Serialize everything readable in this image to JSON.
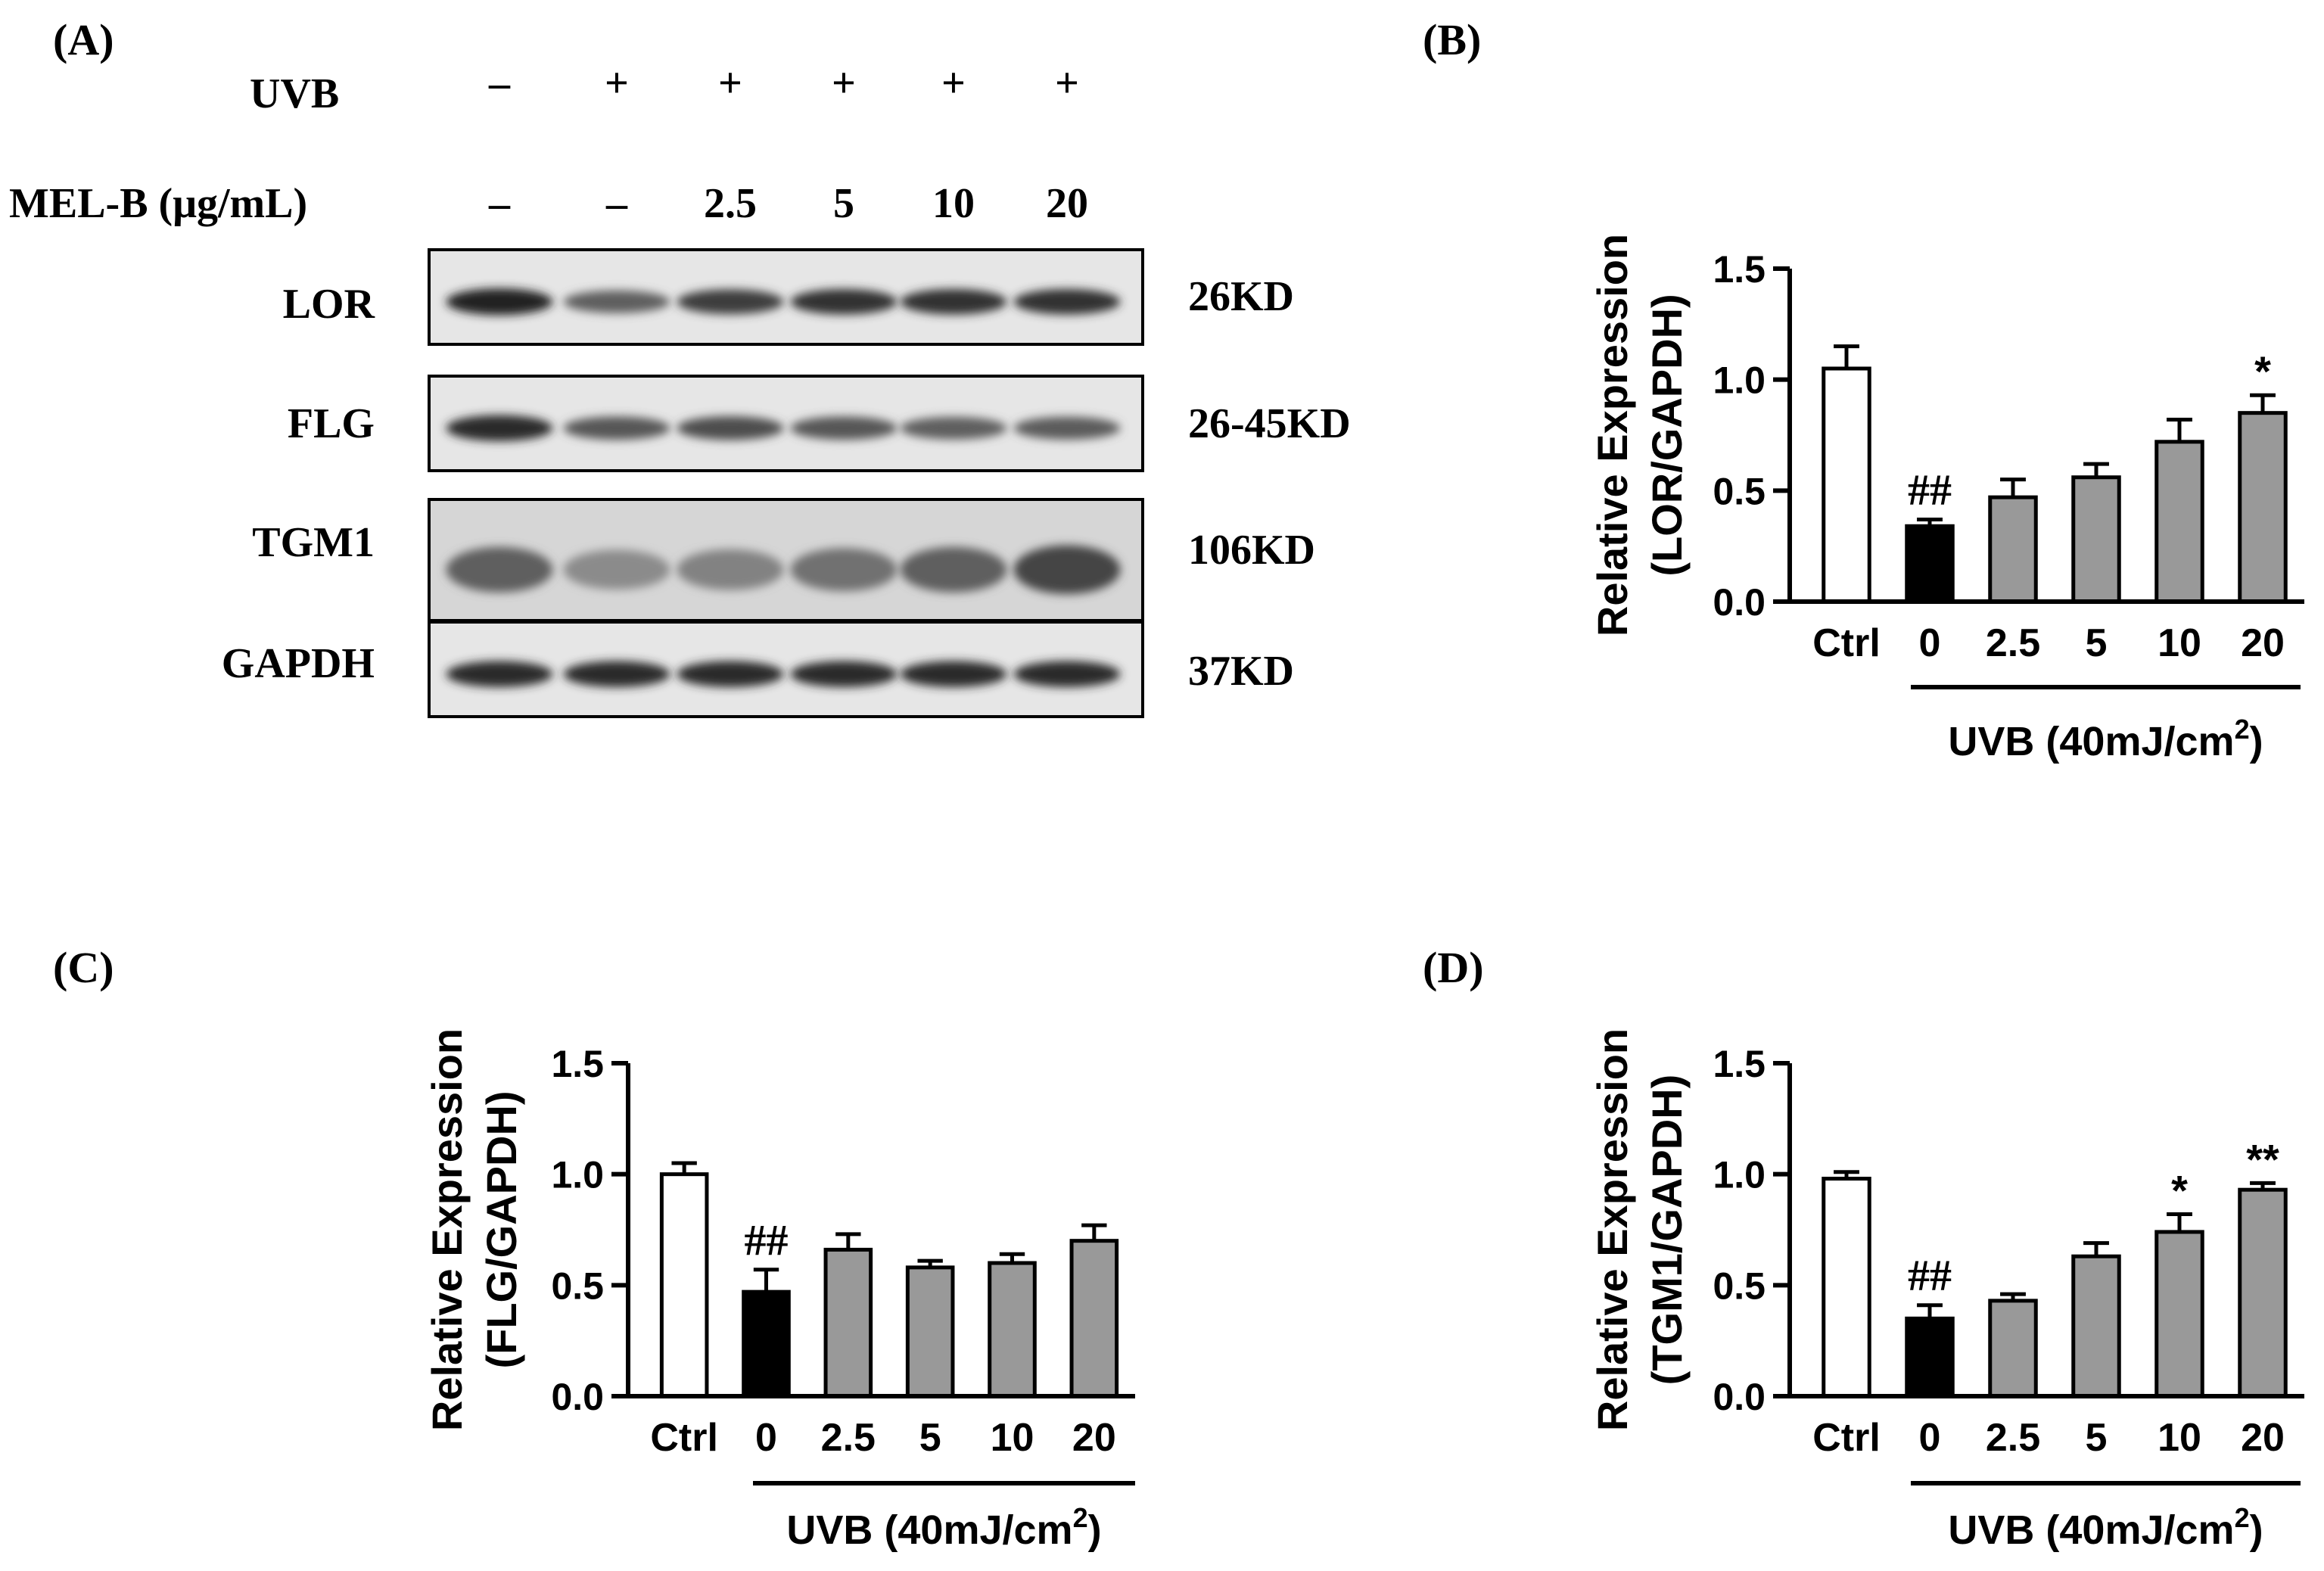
{
  "blot": {
    "panel_label": "(A)",
    "uvb_label": "UVB",
    "uvb_values": [
      "–",
      "+",
      "+",
      "+",
      "+",
      "+"
    ],
    "melb_label": "MEL-B (μg/mL)",
    "melb_values": [
      "–",
      "–",
      "2.5",
      "5",
      "10",
      "20"
    ],
    "rows": [
      {
        "label": "LOR",
        "size": "26KD",
        "intensity": [
          0.95,
          0.6,
          0.8,
          0.85,
          0.85,
          0.85
        ]
      },
      {
        "label": "FLG",
        "size": "26-45KD",
        "intensity": [
          0.9,
          0.65,
          0.7,
          0.65,
          0.6,
          0.62
        ]
      },
      {
        "label": "TGM1",
        "size": "106KD",
        "intensity": [
          0.6,
          0.35,
          0.4,
          0.5,
          0.6,
          0.75
        ]
      },
      {
        "label": "GAPDH",
        "size": "37KD",
        "intensity": [
          0.9,
          0.9,
          0.9,
          0.9,
          0.9,
          0.9
        ]
      }
    ]
  },
  "chart_data": [
    {
      "panel": "(B)",
      "type": "bar",
      "categories": [
        "Ctrl",
        "0",
        "2.5",
        "5",
        "10",
        "20"
      ],
      "values": [
        1.05,
        0.34,
        0.47,
        0.56,
        0.72,
        0.85
      ],
      "errors": [
        0.1,
        0.03,
        0.08,
        0.06,
        0.1,
        0.08
      ],
      "bar_colors": [
        "#ffffff",
        "#000000",
        "#999999",
        "#999999",
        "#999999",
        "#999999"
      ],
      "annotations": [
        "",
        "##",
        "",
        "",
        "",
        "*"
      ],
      "ylabel_line1": "Relative Expression",
      "ylabel_line2": "(LOR/GAPDH)",
      "ylim": [
        0,
        1.5
      ],
      "yticks": [
        "0.0",
        "0.5",
        "1.0",
        "1.5"
      ],
      "group_label": "UVB (40mJ/cm",
      "group_label_sup": "2",
      "group_label_end": ")"
    },
    {
      "panel": "(C)",
      "type": "bar",
      "categories": [
        "Ctrl",
        "0",
        "2.5",
        "5",
        "10",
        "20"
      ],
      "values": [
        1.0,
        0.47,
        0.66,
        0.58,
        0.6,
        0.7
      ],
      "errors": [
        0.05,
        0.1,
        0.07,
        0.03,
        0.04,
        0.07
      ],
      "bar_colors": [
        "#ffffff",
        "#000000",
        "#999999",
        "#999999",
        "#999999",
        "#999999"
      ],
      "annotations": [
        "",
        "##",
        "",
        "",
        "",
        ""
      ],
      "ylabel_line1": "Relative Expression",
      "ylabel_line2": "(FLG/GAPDH)",
      "ylim": [
        0,
        1.5
      ],
      "yticks": [
        "0.0",
        "0.5",
        "1.0",
        "1.5"
      ],
      "group_label": "UVB (40mJ/cm",
      "group_label_sup": "2",
      "group_label_end": ")"
    },
    {
      "panel": "(D)",
      "type": "bar",
      "categories": [
        "Ctrl",
        "0",
        "2.5",
        "5",
        "10",
        "20"
      ],
      "values": [
        0.98,
        0.35,
        0.43,
        0.63,
        0.74,
        0.93
      ],
      "errors": [
        0.03,
        0.06,
        0.03,
        0.06,
        0.08,
        0.03
      ],
      "bar_colors": [
        "#ffffff",
        "#000000",
        "#999999",
        "#999999",
        "#999999",
        "#999999"
      ],
      "annotations": [
        "",
        "##",
        "",
        "",
        "*",
        "**"
      ],
      "ylabel_line1": "Relative Expression",
      "ylabel_line2": "(TGM1/GAPDH)",
      "ylim": [
        0,
        1.5
      ],
      "yticks": [
        "0.0",
        "0.5",
        "1.0",
        "1.5"
      ],
      "group_label": "UVB (40mJ/cm",
      "group_label_sup": "2",
      "group_label_end": ")"
    }
  ]
}
